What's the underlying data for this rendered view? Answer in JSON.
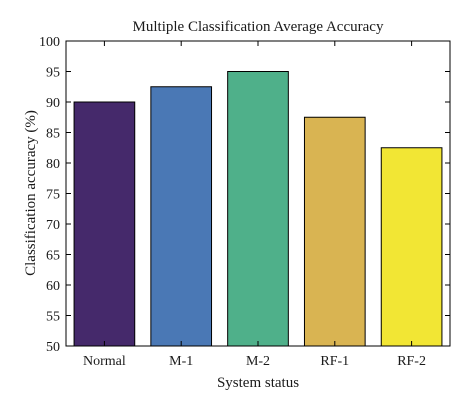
{
  "chart_data": {
    "type": "bar",
    "title": "Multiple Classification Average Accuracy",
    "xlabel": "System status",
    "ylabel": "Classification accuracy (%)",
    "categories": [
      "Normal",
      "M-1",
      "M-2",
      "RF-1",
      "RF-2"
    ],
    "values": [
      90,
      92.5,
      95,
      87.5,
      82.5
    ],
    "colors": [
      "#45296b",
      "#4a78b5",
      "#4fb08a",
      "#d9b452",
      "#f2e634"
    ],
    "ylim": [
      50,
      100
    ],
    "yticks": [
      50,
      55,
      60,
      65,
      70,
      75,
      80,
      85,
      90,
      95,
      100
    ],
    "grid": false,
    "legend": "none"
  }
}
